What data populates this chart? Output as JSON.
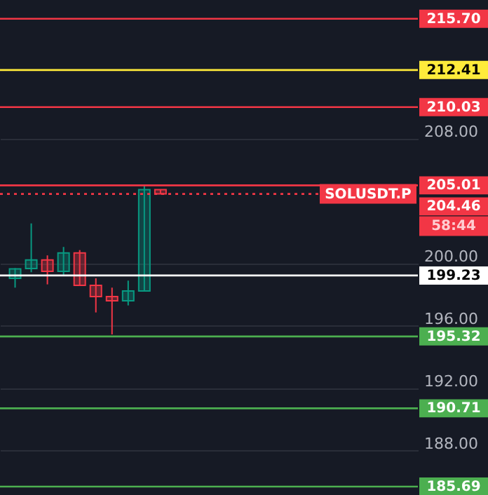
{
  "chart_data": {
    "type": "candlestick",
    "categories": [
      null,
      null,
      null,
      null,
      null,
      null,
      null,
      null,
      null,
      null,
      null,
      null,
      null,
      null,
      null,
      null,
      null,
      null,
      null,
      null,
      null,
      null,
      null,
      null,
      null
    ],
    "ohlc": [
      [
        199.05,
        199.7,
        198.45,
        199.65
      ],
      [
        199.68,
        202.57,
        199.44,
        200.23
      ],
      [
        200.23,
        200.52,
        198.66,
        199.5
      ],
      [
        199.5,
        201.06,
        199.2,
        200.68
      ],
      [
        200.68,
        200.86,
        198.6,
        198.6
      ],
      [
        198.6,
        199.05,
        196.86,
        197.88
      ],
      [
        197.88,
        198.45,
        195.45,
        197.61
      ],
      [
        197.61,
        198.9,
        197.31,
        198.24
      ],
      [
        198.24,
        205.03,
        198.24,
        204.73
      ],
      [
        204.73,
        204.73,
        204.46,
        204.46
      ],
      null,
      null,
      null,
      null,
      null,
      null,
      null,
      null,
      null,
      null,
      null,
      null,
      null,
      null,
      null
    ],
    "colors": [
      "#089981",
      "#089981",
      "#f23645",
      "#089981",
      "#f23645",
      "#f23645",
      "#f23645",
      "#089981",
      "#089981",
      "#f23645",
      null,
      null,
      null,
      null,
      null,
      null,
      null,
      null,
      null,
      null,
      null,
      null,
      null,
      null,
      null
    ],
    "ylim": [
      185.15,
      216.9
    ],
    "yticks": [
      {
        "value": 188,
        "label": "188.00"
      },
      {
        "value": 192,
        "label": "192.00"
      },
      {
        "value": 196,
        "label": "196.00"
      },
      {
        "value": 200,
        "label": "200.00"
      },
      {
        "value": 208,
        "label": "208.00"
      }
    ],
    "grid": "y",
    "tick_labels": "y",
    "ref_lines": [
      {
        "axis": "y",
        "value": 215.7,
        "label": "215.70",
        "color": "#f23645",
        "line_style": "solid"
      },
      {
        "axis": "y",
        "value": 212.41,
        "label": "212.41",
        "color": "#ffeb3b",
        "line_style": "solid"
      },
      {
        "axis": "y",
        "value": 210.03,
        "label": "210.03",
        "color": "#f23645",
        "line_style": "solid"
      },
      {
        "axis": "y",
        "value": 205.01,
        "label": "205.01",
        "color": "#f23645",
        "line_style": "solid"
      },
      {
        "axis": "y",
        "value": 204.46,
        "label": "204.46",
        "color": "#f23645",
        "line_style": "dotted"
      },
      {
        "axis": "y",
        "value": 199.23,
        "label": "199.23",
        "color": "#ffffff",
        "line_style": "solid"
      },
      {
        "axis": "y",
        "value": 195.32,
        "label": "195.32",
        "color": "#4caf50",
        "line_style": "solid"
      },
      {
        "axis": "y",
        "value": 190.71,
        "label": "190.71",
        "color": "#4caf50",
        "line_style": "solid"
      },
      {
        "axis": "y",
        "value": 185.69,
        "label": "185.69",
        "color": "#4caf50",
        "line_style": "solid"
      }
    ],
    "annotations": [
      {
        "text": "SOLUSDT.P",
        "y": 204.46
      },
      "58:44"
    ]
  }
}
